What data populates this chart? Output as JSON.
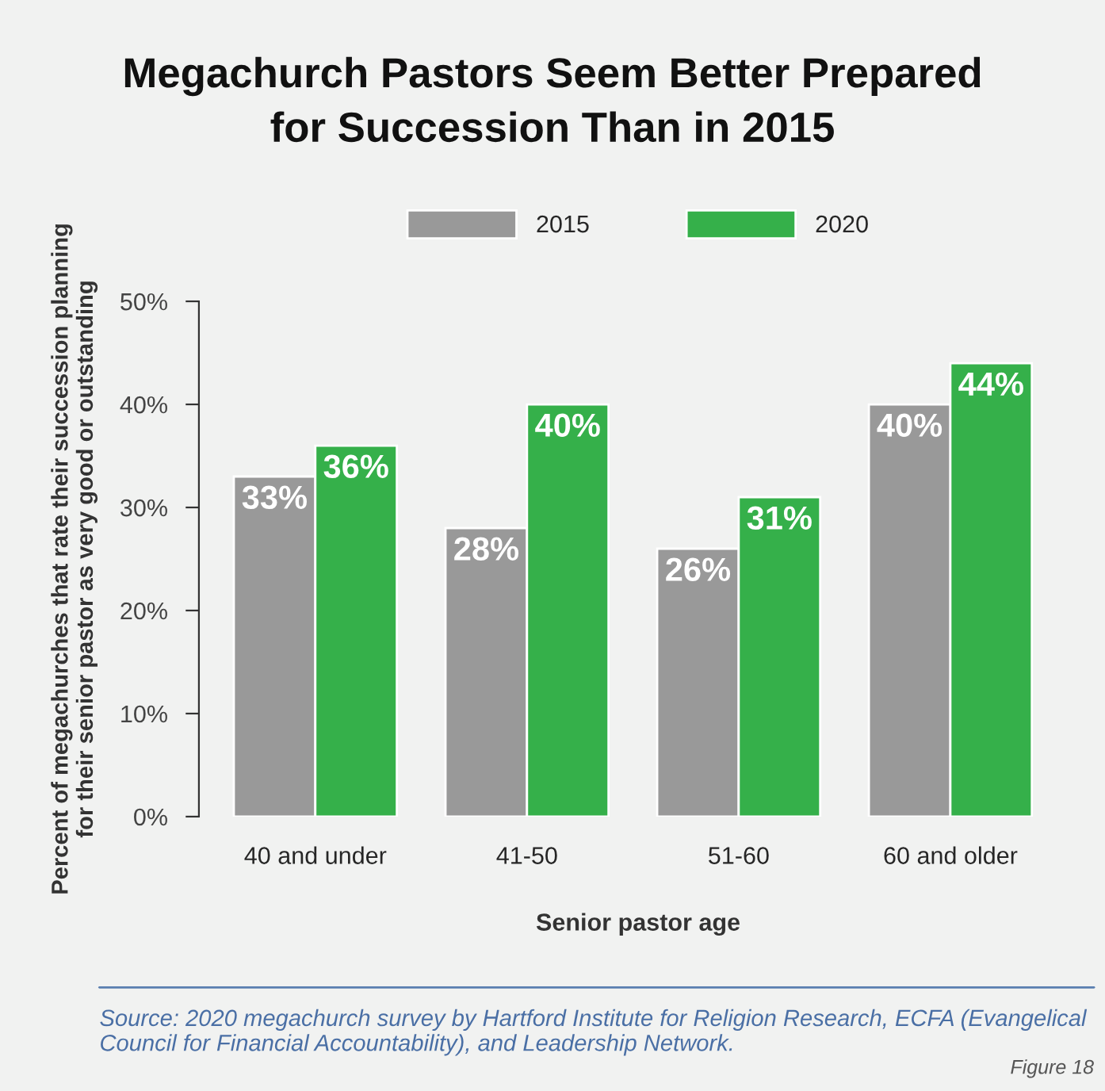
{
  "chart_data": {
    "type": "bar",
    "title": "Megachurch Pastors Seem Better Prepared\nfor Succession Than in 2015",
    "xlabel": "Senior pastor age",
    "ylabel": "Percent of megachurches that rate their succession planning\nfor their senior pastor as very good or outstanding",
    "categories": [
      "40 and under",
      "41-50",
      "51-60",
      "60 and older"
    ],
    "series": [
      {
        "name": "2015",
        "color": "#999999",
        "values": [
          33,
          28,
          26,
          40
        ],
        "value_labels": [
          "33%",
          "28%",
          "26%",
          "40%"
        ]
      },
      {
        "name": "2020",
        "color": "#35b04a",
        "values": [
          36,
          40,
          31,
          44
        ],
        "value_labels": [
          "36%",
          "40%",
          "31%",
          "44%"
        ]
      }
    ],
    "ylim": [
      0,
      50
    ],
    "yticks": [
      {
        "value": 0,
        "label": "0%"
      },
      {
        "value": 10,
        "label": "10%"
      },
      {
        "value": 20,
        "label": "20%"
      },
      {
        "value": 30,
        "label": "30%"
      },
      {
        "value": 40,
        "label": "40%"
      },
      {
        "value": 50,
        "label": "50%"
      }
    ],
    "grid": false,
    "legend": "top",
    "annotations": [
      "Source: 2020 megachurch survey by Hartford Institute for Religion Research, ECFA (Evangelical Council for Financial Accountability), and Leadership Network.",
      "Figure 18"
    ]
  }
}
